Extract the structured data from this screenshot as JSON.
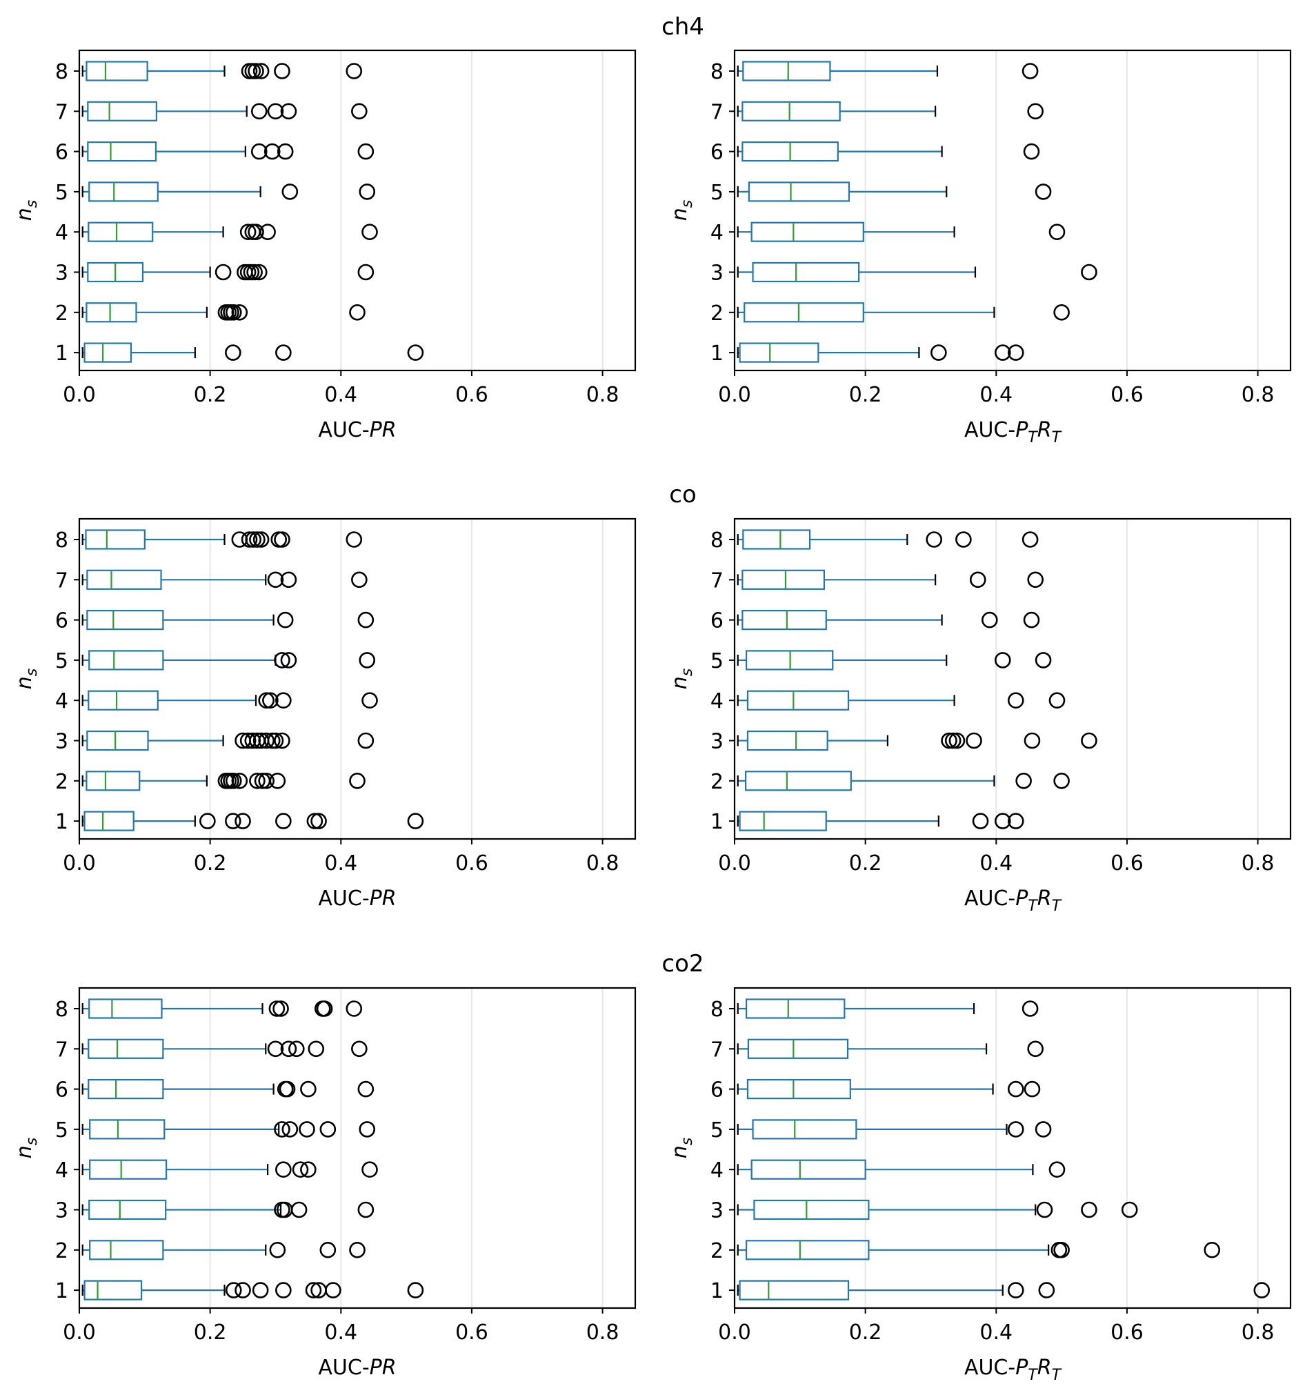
{
  "figure": {
    "rows": [
      "ch4",
      "co",
      "co2"
    ],
    "xlabels": {
      "left": {
        "prefix": "AUC-",
        "italic": "PR"
      },
      "right": {
        "prefix": "AUC-",
        "p": "P",
        "t1": "T",
        "r": "R",
        "t2": "T"
      }
    },
    "ylabel": {
      "main": "n",
      "sub": "s"
    }
  },
  "chart_data": [
    {
      "type": "box",
      "orientation": "horizontal",
      "row": "ch4",
      "xlabel": "AUC-PR",
      "ylabel": "n_s",
      "categories": [
        "1",
        "2",
        "3",
        "4",
        "5",
        "6",
        "7",
        "8"
      ],
      "xlim": [
        0,
        0.85
      ],
      "xticks": [
        "0.0",
        "0.2",
        "0.4",
        "0.6",
        "0.8"
      ],
      "grid": "vertical",
      "colors": {
        "box": "#1f77b4",
        "median": "#2ca02c",
        "flier": "#000000",
        "grid": "#e6e6e6"
      },
      "boxes": [
        {
          "category": "1",
          "whislo": 0.005,
          "q1": 0.008,
          "median": 0.036,
          "q3": 0.079,
          "whishi": 0.177,
          "fliers": [
            0.235,
            0.312,
            0.514
          ]
        },
        {
          "category": "2",
          "whislo": 0.005,
          "q1": 0.011,
          "median": 0.047,
          "q3": 0.087,
          "whishi": 0.195,
          "fliers": [
            0.224,
            0.228,
            0.232,
            0.236,
            0.245,
            0.425
          ]
        },
        {
          "category": "3",
          "whislo": 0.005,
          "q1": 0.013,
          "median": 0.055,
          "q3": 0.097,
          "whishi": 0.2,
          "fliers": [
            0.22,
            0.253,
            0.258,
            0.263,
            0.268,
            0.275,
            0.438
          ]
        },
        {
          "category": "4",
          "whislo": 0.005,
          "q1": 0.014,
          "median": 0.057,
          "q3": 0.112,
          "whishi": 0.22,
          "fliers": [
            0.258,
            0.265,
            0.27,
            0.288,
            0.444
          ]
        },
        {
          "category": "5",
          "whislo": 0.005,
          "q1": 0.015,
          "median": 0.053,
          "q3": 0.12,
          "whishi": 0.277,
          "fliers": [
            0.322,
            0.44
          ]
        },
        {
          "category": "6",
          "whislo": 0.005,
          "q1": 0.013,
          "median": 0.048,
          "q3": 0.117,
          "whishi": 0.254,
          "fliers": [
            0.275,
            0.295,
            0.315,
            0.438
          ]
        },
        {
          "category": "7",
          "whislo": 0.005,
          "q1": 0.013,
          "median": 0.046,
          "q3": 0.118,
          "whishi": 0.256,
          "fliers": [
            0.275,
            0.3,
            0.32,
            0.428
          ]
        },
        {
          "category": "8",
          "whislo": 0.005,
          "q1": 0.011,
          "median": 0.04,
          "q3": 0.104,
          "whishi": 0.222,
          "fliers": [
            0.26,
            0.265,
            0.27,
            0.278,
            0.31,
            0.42
          ]
        }
      ]
    },
    {
      "type": "box",
      "orientation": "horizontal",
      "row": "ch4",
      "xlabel": "AUC-P_T R_T",
      "ylabel": "n_s",
      "categories": [
        "1",
        "2",
        "3",
        "4",
        "5",
        "6",
        "7",
        "8"
      ],
      "xlim": [
        0,
        0.85
      ],
      "xticks": [
        "0.0",
        "0.2",
        "0.4",
        "0.6",
        "0.8"
      ],
      "grid": "vertical",
      "colors": {
        "box": "#1f77b4",
        "median": "#2ca02c",
        "flier": "#000000",
        "grid": "#e6e6e6"
      },
      "boxes": [
        {
          "category": "1",
          "whislo": 0.005,
          "q1": 0.008,
          "median": 0.054,
          "q3": 0.128,
          "whishi": 0.282,
          "fliers": [
            0.312,
            0.41,
            0.43
          ]
        },
        {
          "category": "2",
          "whislo": 0.005,
          "q1": 0.015,
          "median": 0.098,
          "q3": 0.197,
          "whishi": 0.397,
          "fliers": [
            0.5
          ]
        },
        {
          "category": "3",
          "whislo": 0.005,
          "q1": 0.028,
          "median": 0.094,
          "q3": 0.19,
          "whishi": 0.368,
          "fliers": [
            0.542
          ]
        },
        {
          "category": "4",
          "whislo": 0.005,
          "q1": 0.026,
          "median": 0.09,
          "q3": 0.197,
          "whishi": 0.336,
          "fliers": [
            0.493
          ]
        },
        {
          "category": "5",
          "whislo": 0.005,
          "q1": 0.022,
          "median": 0.086,
          "q3": 0.175,
          "whishi": 0.324,
          "fliers": [
            0.472
          ]
        },
        {
          "category": "6",
          "whislo": 0.005,
          "q1": 0.012,
          "median": 0.085,
          "q3": 0.158,
          "whishi": 0.317,
          "fliers": [
            0.454
          ]
        },
        {
          "category": "7",
          "whislo": 0.005,
          "q1": 0.012,
          "median": 0.084,
          "q3": 0.161,
          "whishi": 0.307,
          "fliers": [
            0.46
          ]
        },
        {
          "category": "8",
          "whislo": 0.005,
          "q1": 0.013,
          "median": 0.082,
          "q3": 0.146,
          "whishi": 0.31,
          "fliers": [
            0.452
          ]
        }
      ]
    },
    {
      "type": "box",
      "orientation": "horizontal",
      "row": "co",
      "xlabel": "AUC-PR",
      "ylabel": "n_s",
      "categories": [
        "1",
        "2",
        "3",
        "4",
        "5",
        "6",
        "7",
        "8"
      ],
      "xlim": [
        0,
        0.85
      ],
      "xticks": [
        "0.0",
        "0.2",
        "0.4",
        "0.6",
        "0.8"
      ],
      "grid": "vertical",
      "colors": {
        "box": "#1f77b4",
        "median": "#2ca02c",
        "flier": "#000000",
        "grid": "#e6e6e6"
      },
      "boxes": [
        {
          "category": "1",
          "whislo": 0.005,
          "q1": 0.008,
          "median": 0.036,
          "q3": 0.083,
          "whishi": 0.177,
          "fliers": [
            0.196,
            0.235,
            0.25,
            0.312,
            0.36,
            0.366,
            0.514
          ]
        },
        {
          "category": "2",
          "whislo": 0.005,
          "q1": 0.011,
          "median": 0.04,
          "q3": 0.092,
          "whishi": 0.195,
          "fliers": [
            0.224,
            0.228,
            0.232,
            0.236,
            0.245,
            0.272,
            0.28,
            0.286,
            0.303,
            0.425
          ]
        },
        {
          "category": "3",
          "whislo": 0.005,
          "q1": 0.012,
          "median": 0.055,
          "q3": 0.105,
          "whishi": 0.22,
          "fliers": [
            0.25,
            0.258,
            0.265,
            0.272,
            0.278,
            0.286,
            0.295,
            0.3,
            0.31,
            0.438
          ]
        },
        {
          "category": "4",
          "whislo": 0.005,
          "q1": 0.014,
          "median": 0.057,
          "q3": 0.12,
          "whishi": 0.27,
          "fliers": [
            0.286,
            0.292,
            0.312,
            0.444
          ]
        },
        {
          "category": "5",
          "whislo": 0.005,
          "q1": 0.015,
          "median": 0.053,
          "q3": 0.128,
          "whishi": 0.3,
          "fliers": [
            0.31,
            0.32,
            0.44
          ]
        },
        {
          "category": "6",
          "whislo": 0.005,
          "q1": 0.012,
          "median": 0.052,
          "q3": 0.128,
          "whishi": 0.297,
          "fliers": [
            0.315,
            0.438
          ]
        },
        {
          "category": "7",
          "whislo": 0.005,
          "q1": 0.012,
          "median": 0.049,
          "q3": 0.125,
          "whishi": 0.285,
          "fliers": [
            0.3,
            0.32,
            0.428
          ]
        },
        {
          "category": "8",
          "whislo": 0.005,
          "q1": 0.01,
          "median": 0.042,
          "q3": 0.1,
          "whishi": 0.222,
          "fliers": [
            0.245,
            0.26,
            0.266,
            0.272,
            0.278,
            0.305,
            0.31,
            0.42
          ]
        }
      ]
    },
    {
      "type": "box",
      "orientation": "horizontal",
      "row": "co",
      "xlabel": "AUC-P_T R_T",
      "ylabel": "n_s",
      "categories": [
        "1",
        "2",
        "3",
        "4",
        "5",
        "6",
        "7",
        "8"
      ],
      "xlim": [
        0,
        0.85
      ],
      "xticks": [
        "0.0",
        "0.2",
        "0.4",
        "0.6",
        "0.8"
      ],
      "grid": "vertical",
      "colors": {
        "box": "#1f77b4",
        "median": "#2ca02c",
        "flier": "#000000",
        "grid": "#e6e6e6"
      },
      "boxes": [
        {
          "category": "1",
          "whislo": 0.005,
          "q1": 0.008,
          "median": 0.045,
          "q3": 0.14,
          "whishi": 0.312,
          "fliers": [
            0.376,
            0.41,
            0.43
          ]
        },
        {
          "category": "2",
          "whislo": 0.005,
          "q1": 0.017,
          "median": 0.08,
          "q3": 0.178,
          "whishi": 0.397,
          "fliers": [
            0.442,
            0.5
          ]
        },
        {
          "category": "3",
          "whislo": 0.005,
          "q1": 0.02,
          "median": 0.094,
          "q3": 0.142,
          "whishi": 0.234,
          "fliers": [
            0.328,
            0.334,
            0.34,
            0.366,
            0.455,
            0.542
          ]
        },
        {
          "category": "4",
          "whislo": 0.005,
          "q1": 0.02,
          "median": 0.09,
          "q3": 0.174,
          "whishi": 0.336,
          "fliers": [
            0.43,
            0.493
          ]
        },
        {
          "category": "5",
          "whislo": 0.005,
          "q1": 0.018,
          "median": 0.085,
          "q3": 0.15,
          "whishi": 0.324,
          "fliers": [
            0.41,
            0.472
          ]
        },
        {
          "category": "6",
          "whislo": 0.005,
          "q1": 0.012,
          "median": 0.08,
          "q3": 0.14,
          "whishi": 0.317,
          "fliers": [
            0.39,
            0.454
          ]
        },
        {
          "category": "7",
          "whislo": 0.005,
          "q1": 0.012,
          "median": 0.078,
          "q3": 0.137,
          "whishi": 0.307,
          "fliers": [
            0.372,
            0.46
          ]
        },
        {
          "category": "8",
          "whislo": 0.005,
          "q1": 0.013,
          "median": 0.07,
          "q3": 0.115,
          "whishi": 0.264,
          "fliers": [
            0.305,
            0.35,
            0.452
          ]
        }
      ]
    },
    {
      "type": "box",
      "orientation": "horizontal",
      "row": "co2",
      "xlabel": "AUC-PR",
      "ylabel": "n_s",
      "categories": [
        "1",
        "2",
        "3",
        "4",
        "5",
        "6",
        "7",
        "8"
      ],
      "xlim": [
        0,
        0.85
      ],
      "xticks": [
        "0.0",
        "0.2",
        "0.4",
        "0.6",
        "0.8"
      ],
      "grid": "vertical",
      "colors": {
        "box": "#1f77b4",
        "median": "#2ca02c",
        "flier": "#000000",
        "grid": "#e6e6e6"
      },
      "boxes": [
        {
          "category": "1",
          "whislo": 0.005,
          "q1": 0.008,
          "median": 0.028,
          "q3": 0.095,
          "whishi": 0.222,
          "fliers": [
            0.236,
            0.25,
            0.277,
            0.312,
            0.358,
            0.366,
            0.388,
            0.514
          ]
        },
        {
          "category": "2",
          "whislo": 0.005,
          "q1": 0.016,
          "median": 0.048,
          "q3": 0.128,
          "whishi": 0.285,
          "fliers": [
            0.303,
            0.38,
            0.425
          ]
        },
        {
          "category": "3",
          "whislo": 0.005,
          "q1": 0.015,
          "median": 0.062,
          "q3": 0.132,
          "whishi": 0.308,
          "fliers": [
            0.31,
            0.314,
            0.336,
            0.438
          ]
        },
        {
          "category": "4",
          "whislo": 0.005,
          "q1": 0.016,
          "median": 0.064,
          "q3": 0.133,
          "whishi": 0.288,
          "fliers": [
            0.312,
            0.338,
            0.35,
            0.444
          ]
        },
        {
          "category": "5",
          "whislo": 0.005,
          "q1": 0.016,
          "median": 0.059,
          "q3": 0.13,
          "whishi": 0.305,
          "fliers": [
            0.31,
            0.322,
            0.348,
            0.38,
            0.44
          ]
        },
        {
          "category": "6",
          "whislo": 0.005,
          "q1": 0.014,
          "median": 0.056,
          "q3": 0.128,
          "whishi": 0.297,
          "fliers": [
            0.315,
            0.318,
            0.35,
            0.438
          ]
        },
        {
          "category": "7",
          "whislo": 0.005,
          "q1": 0.014,
          "median": 0.058,
          "q3": 0.128,
          "whishi": 0.285,
          "fliers": [
            0.3,
            0.32,
            0.332,
            0.362,
            0.428
          ]
        },
        {
          "category": "8",
          "whislo": 0.005,
          "q1": 0.015,
          "median": 0.05,
          "q3": 0.126,
          "whishi": 0.28,
          "fliers": [
            0.302,
            0.308,
            0.372,
            0.375,
            0.42
          ]
        }
      ]
    },
    {
      "type": "box",
      "orientation": "horizontal",
      "row": "co2",
      "xlabel": "AUC-P_T R_T",
      "ylabel": "n_s",
      "categories": [
        "1",
        "2",
        "3",
        "4",
        "5",
        "6",
        "7",
        "8"
      ],
      "xlim": [
        0,
        0.85
      ],
      "xticks": [
        "0.0",
        "0.2",
        "0.4",
        "0.6",
        "0.8"
      ],
      "grid": "vertical",
      "colors": {
        "box": "#1f77b4",
        "median": "#2ca02c",
        "flier": "#000000",
        "grid": "#e6e6e6"
      },
      "boxes": [
        {
          "category": "1",
          "whislo": 0.005,
          "q1": 0.008,
          "median": 0.052,
          "q3": 0.174,
          "whishi": 0.41,
          "fliers": [
            0.43,
            0.477,
            0.806
          ]
        },
        {
          "category": "2",
          "whislo": 0.005,
          "q1": 0.018,
          "median": 0.1,
          "q3": 0.205,
          "whishi": 0.48,
          "fliers": [
            0.496,
            0.5,
            0.73
          ]
        },
        {
          "category": "3",
          "whislo": 0.005,
          "q1": 0.03,
          "median": 0.11,
          "q3": 0.205,
          "whishi": 0.46,
          "fliers": [
            0.474,
            0.542,
            0.604
          ]
        },
        {
          "category": "4",
          "whislo": 0.005,
          "q1": 0.026,
          "median": 0.1,
          "q3": 0.2,
          "whishi": 0.456,
          "fliers": [
            0.493
          ]
        },
        {
          "category": "5",
          "whislo": 0.005,
          "q1": 0.028,
          "median": 0.092,
          "q3": 0.186,
          "whishi": 0.416,
          "fliers": [
            0.43,
            0.472
          ]
        },
        {
          "category": "6",
          "whislo": 0.005,
          "q1": 0.02,
          "median": 0.09,
          "q3": 0.177,
          "whishi": 0.395,
          "fliers": [
            0.43,
            0.455
          ]
        },
        {
          "category": "7",
          "whislo": 0.005,
          "q1": 0.021,
          "median": 0.09,
          "q3": 0.173,
          "whishi": 0.385,
          "fliers": [
            0.46
          ]
        },
        {
          "category": "8",
          "whislo": 0.005,
          "q1": 0.018,
          "median": 0.082,
          "q3": 0.168,
          "whishi": 0.366,
          "fliers": [
            0.452
          ]
        }
      ]
    }
  ]
}
